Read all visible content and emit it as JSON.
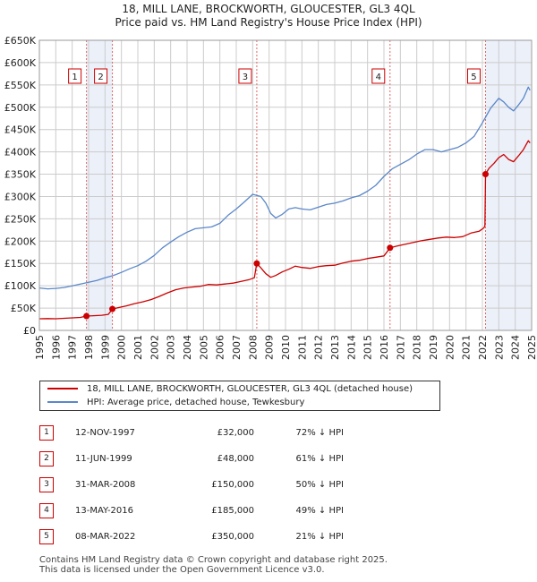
{
  "title_line1": "18, MILL LANE, BROCKWORTH, GLOUCESTER, GL3 4QL",
  "title_line2": "Price paid vs. HM Land Registry's House Price Index (HPI)",
  "legend": {
    "red_label": "18, MILL LANE, BROCKWORTH, GLOUCESTER, GL3 4QL (detached house)",
    "blue_label": "HPI: Average price, detached house, Tewkesbury"
  },
  "colors": {
    "red": "#cc0000",
    "blue": "#5b87c9",
    "band": "#dde6f5",
    "grid": "#cccccc"
  },
  "sales": [
    {
      "num": "1",
      "date": "12-NOV-1997",
      "price": "£32,000",
      "hpi": "72% ↓ HPI"
    },
    {
      "num": "2",
      "date": "11-JUN-1999",
      "price": "£48,000",
      "hpi": "61% ↓ HPI"
    },
    {
      "num": "3",
      "date": "31-MAR-2008",
      "price": "£150,000",
      "hpi": "50% ↓ HPI"
    },
    {
      "num": "4",
      "date": "13-MAY-2016",
      "price": "£185,000",
      "hpi": "49% ↓ HPI"
    },
    {
      "num": "5",
      "date": "08-MAR-2022",
      "price": "£350,000",
      "hpi": "21% ↓ HPI"
    }
  ],
  "footer": {
    "line1": "Contains HM Land Registry data © Crown copyright and database right 2025.",
    "line2": "This data is licensed under the Open Government Licence v3.0."
  },
  "chart_data": {
    "type": "line",
    "title": "",
    "xlim": [
      1995,
      2025
    ],
    "ylim": [
      0,
      650000
    ],
    "grid": true,
    "legend_position": "below",
    "x_ticks": [
      "1995",
      "1996",
      "1997",
      "1998",
      "1999",
      "2000",
      "2001",
      "2002",
      "2003",
      "2004",
      "2005",
      "2006",
      "2007",
      "2008",
      "2009",
      "2010",
      "2011",
      "2012",
      "2013",
      "2014",
      "2015",
      "2016",
      "2017",
      "2018",
      "2019",
      "2020",
      "2021",
      "2022",
      "2023",
      "2024",
      "2025"
    ],
    "y_ticks": [
      {
        "value": 0,
        "label": "£0"
      },
      {
        "value": 50000,
        "label": "£50K"
      },
      {
        "value": 100000,
        "label": "£100K"
      },
      {
        "value": 150000,
        "label": "£150K"
      },
      {
        "value": 200000,
        "label": "£200K"
      },
      {
        "value": 250000,
        "label": "£250K"
      },
      {
        "value": 300000,
        "label": "£300K"
      },
      {
        "value": 350000,
        "label": "£350K"
      },
      {
        "value": 400000,
        "label": "£400K"
      },
      {
        "value": 450000,
        "label": "£450K"
      },
      {
        "value": 500000,
        "label": "£500K"
      },
      {
        "value": 550000,
        "label": "£550K"
      },
      {
        "value": 600000,
        "label": "£600K"
      },
      {
        "value": 650000,
        "label": "£650K"
      }
    ],
    "shaded_bands": [
      [
        1997.87,
        1999.45
      ],
      [
        2022.19,
        2024.95
      ]
    ],
    "markers": [
      {
        "label": "1",
        "x": 1997.87,
        "y": 32000
      },
      {
        "label": "2",
        "x": 1999.45,
        "y": 48000
      },
      {
        "label": "3",
        "x": 2008.25,
        "y": 150000
      },
      {
        "label": "4",
        "x": 2016.37,
        "y": 185000
      },
      {
        "label": "5",
        "x": 2022.19,
        "y": 350000
      }
    ],
    "series": [
      {
        "name": "18, MILL LANE, BROCKWORTH, GLOUCESTER, GL3 4QL (detached house)",
        "color": "#cc0000",
        "x": [
          1995.0,
          1995.5,
          1996.0,
          1996.5,
          1997.0,
          1997.5,
          1997.87,
          1998.3,
          1998.8,
          1999.2,
          1999.45,
          1999.8,
          2000.3,
          2000.8,
          2001.3,
          2001.8,
          2002.3,
          2002.8,
          2003.3,
          2003.8,
          2004.3,
          2004.8,
          2005.3,
          2005.8,
          2006.3,
          2006.8,
          2007.3,
          2007.8,
          2008.1,
          2008.25,
          2008.5,
          2008.8,
          2009.1,
          2009.4,
          2009.8,
          2010.2,
          2010.6,
          2011.0,
          2011.5,
          2012.0,
          2012.5,
          2013.0,
          2013.5,
          2014.0,
          2014.5,
          2015.0,
          2015.5,
          2016.0,
          2016.37,
          2016.8,
          2017.3,
          2017.8,
          2018.3,
          2018.8,
          2019.3,
          2019.8,
          2020.3,
          2020.8,
          2021.3,
          2021.8,
          2022.1,
          2022.15,
          2022.19,
          2022.4,
          2022.7,
          2023.0,
          2023.3,
          2023.6,
          2023.9,
          2024.2,
          2024.5,
          2024.8,
          2024.9
        ],
        "y": [
          26000,
          26500,
          26000,
          27000,
          28000,
          29000,
          32000,
          33000,
          34000,
          36000,
          48000,
          51000,
          55000,
          60000,
          64000,
          69000,
          76000,
          84000,
          91000,
          95000,
          97000,
          99000,
          103000,
          102000,
          104000,
          106000,
          110000,
          114000,
          118000,
          150000,
          140000,
          127000,
          119000,
          123000,
          131000,
          137000,
          144000,
          141000,
          139000,
          143000,
          145000,
          146000,
          151000,
          155000,
          157000,
          161000,
          164000,
          167000,
          185000,
          189000,
          193000,
          197000,
          201000,
          204000,
          207000,
          209000,
          208000,
          210000,
          218000,
          222000,
          230000,
          235000,
          350000,
          363000,
          374000,
          387000,
          394000,
          383000,
          378000,
          391000,
          405000,
          425000,
          420000
        ]
      },
      {
        "name": "HPI: Average price, detached house, Tewkesbury",
        "color": "#5b87c9",
        "x": [
          1995.0,
          1995.5,
          1996.0,
          1996.5,
          1997.0,
          1997.5,
          1998.0,
          1998.5,
          1999.0,
          1999.5,
          2000.0,
          2000.5,
          2001.0,
          2001.5,
          2002.0,
          2002.5,
          2003.0,
          2003.5,
          2004.0,
          2004.5,
          2005.0,
          2005.5,
          2006.0,
          2006.5,
          2007.0,
          2007.5,
          2008.0,
          2008.5,
          2008.8,
          2009.1,
          2009.4,
          2009.8,
          2010.2,
          2010.6,
          2011.0,
          2011.5,
          2012.0,
          2012.5,
          2013.0,
          2013.5,
          2014.0,
          2014.5,
          2015.0,
          2015.5,
          2016.0,
          2016.5,
          2017.0,
          2017.5,
          2018.0,
          2018.5,
          2019.0,
          2019.5,
          2020.0,
          2020.5,
          2021.0,
          2021.5,
          2022.0,
          2022.5,
          2023.0,
          2023.3,
          2023.6,
          2023.9,
          2024.2,
          2024.5,
          2024.8,
          2024.9
        ],
        "y": [
          95000,
          93000,
          94000,
          96000,
          100000,
          104000,
          108000,
          112000,
          118000,
          123000,
          130000,
          138000,
          145000,
          155000,
          168000,
          185000,
          198000,
          210000,
          220000,
          228000,
          230000,
          232000,
          240000,
          258000,
          272000,
          288000,
          305000,
          300000,
          285000,
          262000,
          252000,
          260000,
          272000,
          275000,
          272000,
          270000,
          276000,
          282000,
          285000,
          290000,
          297000,
          302000,
          312000,
          325000,
          345000,
          362000,
          372000,
          382000,
          395000,
          405000,
          405000,
          400000,
          405000,
          410000,
          420000,
          435000,
          465000,
          498000,
          520000,
          512000,
          500000,
          492000,
          505000,
          520000,
          545000,
          538000
        ]
      }
    ]
  }
}
